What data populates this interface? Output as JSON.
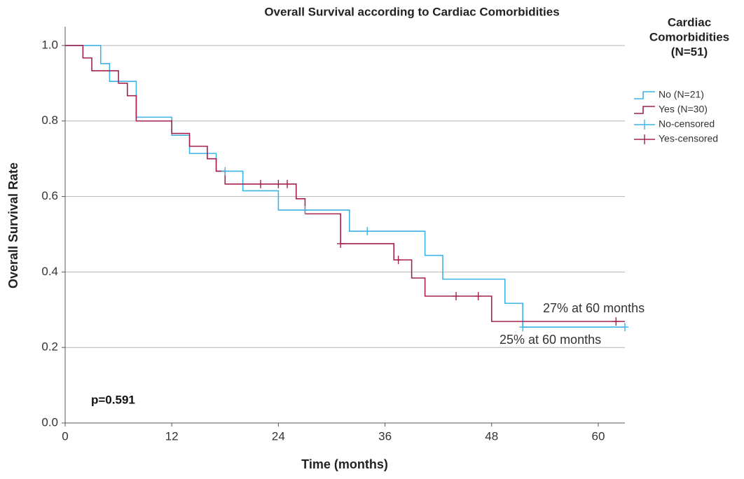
{
  "chart_data": {
    "type": "step",
    "title": "Overall Survival according to Cardiac Comorbidities",
    "x_label": "Time (months)",
    "y_label": "Overall Survival Rate",
    "legend_title": [
      "Cardiac",
      "Comorbidities",
      "(N=51)"
    ],
    "legend": "right",
    "grid": true,
    "xlim": [
      0,
      63
    ],
    "ylim": [
      0,
      1.05
    ],
    "xticks": [
      0,
      12,
      24,
      36,
      48,
      60
    ],
    "yticks": [
      {
        "value": 0,
        "label": "0.0"
      },
      0.2,
      0.4,
      0.6,
      0.8,
      {
        "value": 1,
        "label": "1.0"
      }
    ],
    "series": [
      {
        "name": "No (N=21)",
        "color": "#3cb4e5",
        "x": [
          0,
          4,
          5,
          8,
          12,
          14,
          17,
          20,
          24,
          32,
          40.5,
          42.5,
          49.5,
          51.5,
          63
        ],
        "values": [
          1,
          0.952,
          0.905,
          0.81,
          0.762,
          0.714,
          0.667,
          0.615,
          0.564,
          0.508,
          0.444,
          0.381,
          0.317,
          0.254,
          0.254
        ]
      },
      {
        "name": "Yes (N=30)",
        "color": "#a3204f",
        "x": [
          0,
          2,
          3,
          6,
          7,
          8,
          12,
          14,
          16,
          17,
          18,
          26,
          27,
          31,
          37,
          39,
          40.5,
          48,
          63
        ],
        "values": [
          1,
          0.967,
          0.933,
          0.9,
          0.867,
          0.8,
          0.767,
          0.733,
          0.7,
          0.667,
          0.633,
          0.594,
          0.554,
          0.475,
          0.432,
          0.384,
          0.336,
          0.269,
          0.269
        ]
      },
      {
        "name": "No-censored",
        "color": "#3cb4e5",
        "marker": "plus",
        "x": [
          18,
          27,
          34,
          51.5,
          63
        ],
        "values": [
          0.667,
          0.564,
          0.508,
          0.254,
          0.254
        ]
      },
      {
        "name": "Yes-censored",
        "color": "#a3204f",
        "marker": "plus",
        "x": [
          22,
          24,
          25,
          31,
          37.5,
          44,
          46.5,
          62
        ],
        "values": [
          0.633,
          0.633,
          0.633,
          0.475,
          0.432,
          0.336,
          0.336,
          0.269
        ]
      }
    ],
    "annotations": [
      "27% at 60 months",
      "25% at 60 months",
      "p=0.591"
    ]
  }
}
